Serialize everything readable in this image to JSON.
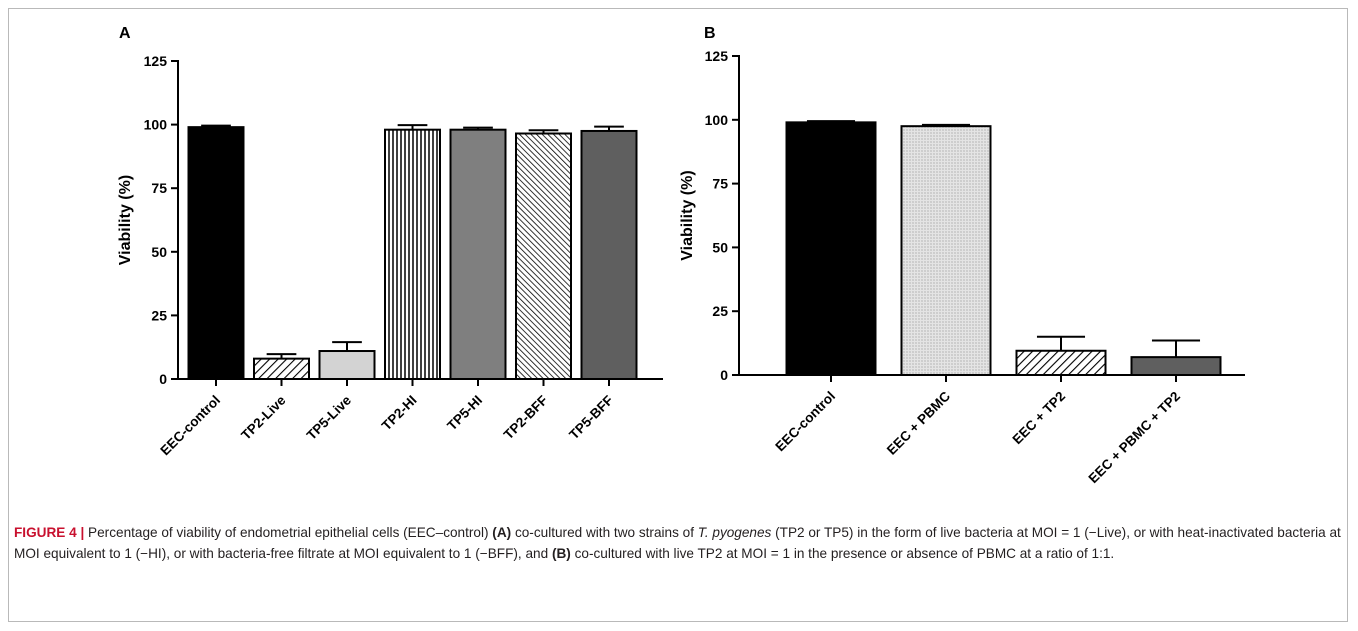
{
  "chart_data": [
    {
      "type": "bar",
      "panel_label": "A",
      "ylabel": "Viability (%)",
      "ylim": [
        0,
        125
      ],
      "yticks": [
        0,
        25,
        50,
        75,
        100,
        125
      ],
      "categories": [
        "EEC-control",
        "TP2-Live",
        "TP5-Live",
        "TP2-HI",
        "TP5-HI",
        "TP2-BFF",
        "TP5-BFF"
      ],
      "values": [
        99,
        8,
        11,
        98,
        98,
        96.5,
        97.5
      ],
      "errors": [
        0.6,
        1.8,
        3.5,
        1.8,
        0.8,
        1.3,
        1.7
      ],
      "bar_styles": [
        "solid-black",
        "hatch-diag",
        "solid-lightgray",
        "vertical-stripes",
        "solid-gray",
        "hatch-diag-dense",
        "solid-darkgray"
      ]
    },
    {
      "type": "bar",
      "panel_label": "B",
      "ylabel": "Viability (%)",
      "ylim": [
        0,
        125
      ],
      "yticks": [
        0,
        25,
        50,
        75,
        100,
        125
      ],
      "categories": [
        "EEC-control",
        "EEC + PBMC",
        "EEC + TP2",
        "EEC + PBMC + TP2"
      ],
      "values": [
        99,
        97.5,
        9.5,
        7
      ],
      "errors": [
        0.5,
        0.5,
        5.5,
        6.5
      ],
      "bar_styles": [
        "solid-black",
        "dotted",
        "hatch-diag",
        "solid-darkgray"
      ]
    }
  ],
  "caption": {
    "label": "FIGURE 4 |",
    "part1": " Percentage of viability of endometrial epithelial cells (EEC–control) ",
    "panel_a": "(A)",
    "part2": " co-cultured with two strains of ",
    "species": "T. pyogenes",
    "part3": " (TP2 or TP5) in the form of live bacteria at MOI = 1 (−Live), or with heat-inactivated bacteria at MOI equivalent to 1 (−HI), or with bacteria-free filtrate at MOI equivalent to 1 (−BFF), and ",
    "panel_b": "(B)",
    "part4": " co-cultured with live TP2 at MOI = 1 in the presence or absence of PBMC at a ratio of 1:1."
  },
  "colors": {
    "solid-black": "#000000",
    "solid-lightgray": "#d3d3d3",
    "solid-gray": "#7f7f7f",
    "solid-darkgray": "#5f5f5f",
    "caption_label": "#c8102e"
  }
}
